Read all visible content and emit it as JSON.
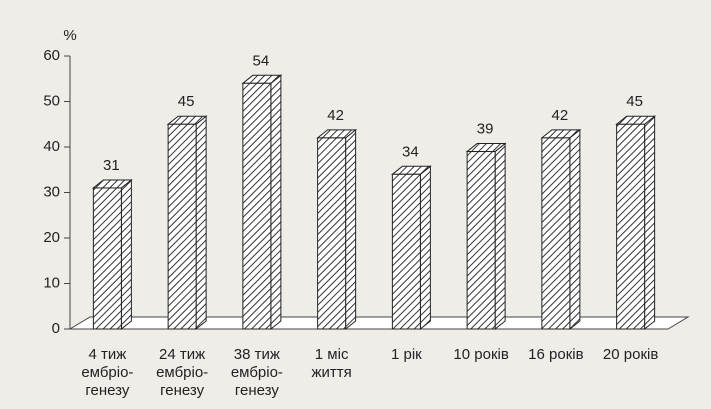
{
  "chart_data": {
    "type": "bar3d",
    "y_label": "%",
    "categories": [
      [
        "4 тиж",
        "ембріо-",
        "генезу"
      ],
      [
        "24 тиж",
        "ембріо-",
        "генезу"
      ],
      [
        "38 тиж",
        "ембріо-",
        "генезу"
      ],
      [
        "1 міс",
        "життя"
      ],
      [
        "1 рік"
      ],
      [
        "10 років"
      ],
      [
        "16 років"
      ],
      [
        "20 років"
      ]
    ],
    "values": [
      31,
      45,
      54,
      42,
      34,
      39,
      42,
      45
    ],
    "ylim": [
      0,
      60
    ],
    "yticks": [
      0,
      10,
      20,
      30,
      40,
      50,
      60
    ],
    "grid": false
  }
}
